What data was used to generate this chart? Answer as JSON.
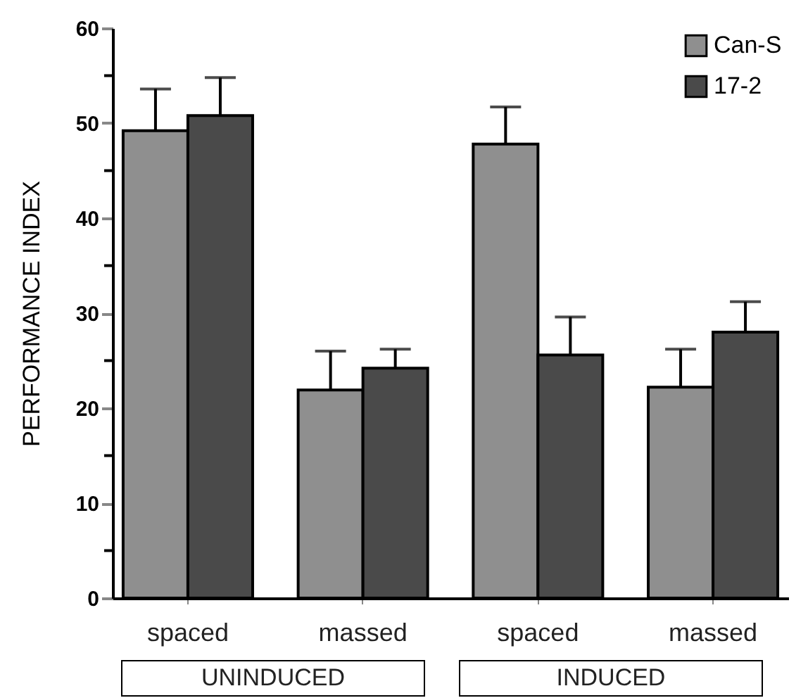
{
  "chart_data": {
    "type": "bar",
    "ylabel": "PERFORMANCE INDEX",
    "categories": [
      "spaced",
      "massed",
      "spaced",
      "massed"
    ],
    "series": [
      {
        "name": "Can-S",
        "color": "#8f8f8f",
        "values": [
          49.2,
          21.9,
          47.8,
          22.2
        ],
        "errors": [
          [
            49.2,
            53.6
          ],
          [
            21.9,
            26.0
          ],
          [
            47.8,
            51.7
          ],
          [
            22.2,
            26.2
          ]
        ]
      },
      {
        "name": "17-2",
        "color": "#4a4a4a",
        "values": [
          50.8,
          24.2,
          25.6,
          28.0
        ],
        "errors": [
          [
            50.8,
            54.8
          ],
          [
            24.2,
            26.2
          ],
          [
            25.6,
            29.6
          ],
          [
            28.0,
            31.2
          ]
        ]
      }
    ],
    "ylim": [
      0,
      60
    ],
    "yticks": [
      0,
      {
        "value": 5,
        "label": null
      },
      10,
      {
        "value": 15,
        "label": null
      },
      20,
      {
        "value": 25,
        "label": null
      },
      30,
      {
        "value": 35,
        "label": null
      },
      40,
      {
        "value": 45,
        "label": null
      },
      50,
      {
        "value": 55,
        "label": null
      },
      60
    ],
    "legend": "top right",
    "grid": false,
    "annotations": [
      "UNINDUCED",
      "INDUCED"
    ]
  }
}
